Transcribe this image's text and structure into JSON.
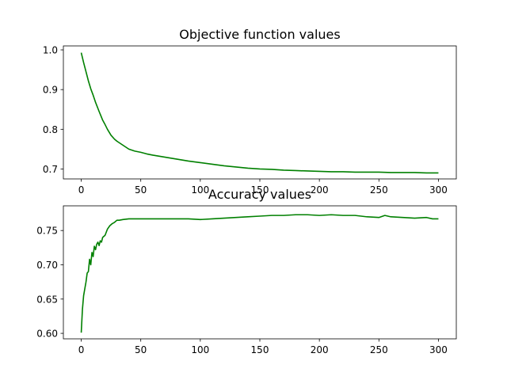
{
  "figure": {
    "line_color": "#008000",
    "axes_color": "#000000",
    "background": "#ffffff"
  },
  "chart_data": [
    {
      "type": "line",
      "title": "Objective function values",
      "xlabel": "",
      "ylabel": "",
      "xlim": [
        -15,
        315
      ],
      "ylim": [
        0.675,
        1.01
      ],
      "x_ticks": [
        0,
        50,
        100,
        150,
        200,
        250,
        300
      ],
      "y_ticks": [
        0.7,
        0.8,
        0.9,
        1.0
      ],
      "y_tick_labels": [
        "0.7",
        "0.8",
        "0.9",
        "1.0"
      ],
      "grid": false,
      "series": [
        {
          "x": [
            0,
            2,
            4,
            6,
            8,
            10,
            12,
            15,
            18,
            20,
            22,
            25,
            28,
            30,
            35,
            40,
            45,
            50,
            55,
            60,
            70,
            80,
            90,
            100,
            110,
            120,
            130,
            140,
            150,
            160,
            170,
            180,
            190,
            200,
            210,
            220,
            230,
            240,
            250,
            260,
            270,
            280,
            290,
            300
          ],
          "y": [
            0.993,
            0.968,
            0.945,
            0.922,
            0.902,
            0.886,
            0.868,
            0.845,
            0.823,
            0.812,
            0.8,
            0.785,
            0.775,
            0.77,
            0.76,
            0.75,
            0.745,
            0.742,
            0.738,
            0.735,
            0.73,
            0.725,
            0.72,
            0.716,
            0.712,
            0.708,
            0.705,
            0.702,
            0.7,
            0.699,
            0.697,
            0.696,
            0.695,
            0.694,
            0.693,
            0.693,
            0.692,
            0.692,
            0.692,
            0.691,
            0.691,
            0.691,
            0.69,
            0.69
          ],
          "color": "#008000"
        }
      ]
    },
    {
      "type": "line",
      "title": "Accuracy values",
      "xlabel": "",
      "ylabel": "",
      "xlim": [
        -15,
        315
      ],
      "ylim": [
        0.592,
        0.786
      ],
      "x_ticks": [
        0,
        50,
        100,
        150,
        200,
        250,
        300
      ],
      "y_ticks": [
        0.6,
        0.65,
        0.7,
        0.75
      ],
      "y_tick_labels": [
        "0.60",
        "0.65",
        "0.70",
        "0.75"
      ],
      "grid": false,
      "series": [
        {
          "x": [
            0,
            1,
            2,
            3,
            4,
            5,
            6,
            7,
            8,
            9,
            10,
            11,
            12,
            13,
            14,
            15,
            16,
            17,
            18,
            20,
            22,
            24,
            26,
            28,
            30,
            32,
            35,
            40,
            50,
            60,
            70,
            80,
            90,
            100,
            110,
            120,
            130,
            140,
            150,
            160,
            170,
            180,
            190,
            200,
            210,
            220,
            230,
            240,
            250,
            255,
            260,
            270,
            280,
            290,
            295,
            300
          ],
          "y": [
            0.601,
            0.635,
            0.655,
            0.665,
            0.675,
            0.688,
            0.69,
            0.708,
            0.7,
            0.718,
            0.712,
            0.727,
            0.722,
            0.73,
            0.733,
            0.728,
            0.735,
            0.733,
            0.74,
            0.743,
            0.752,
            0.757,
            0.76,
            0.762,
            0.765,
            0.765,
            0.766,
            0.767,
            0.767,
            0.767,
            0.767,
            0.767,
            0.767,
            0.766,
            0.767,
            0.768,
            0.769,
            0.77,
            0.771,
            0.772,
            0.772,
            0.773,
            0.773,
            0.772,
            0.773,
            0.772,
            0.772,
            0.77,
            0.769,
            0.772,
            0.77,
            0.769,
            0.768,
            0.769,
            0.767,
            0.767
          ],
          "color": "#008000"
        }
      ]
    }
  ]
}
